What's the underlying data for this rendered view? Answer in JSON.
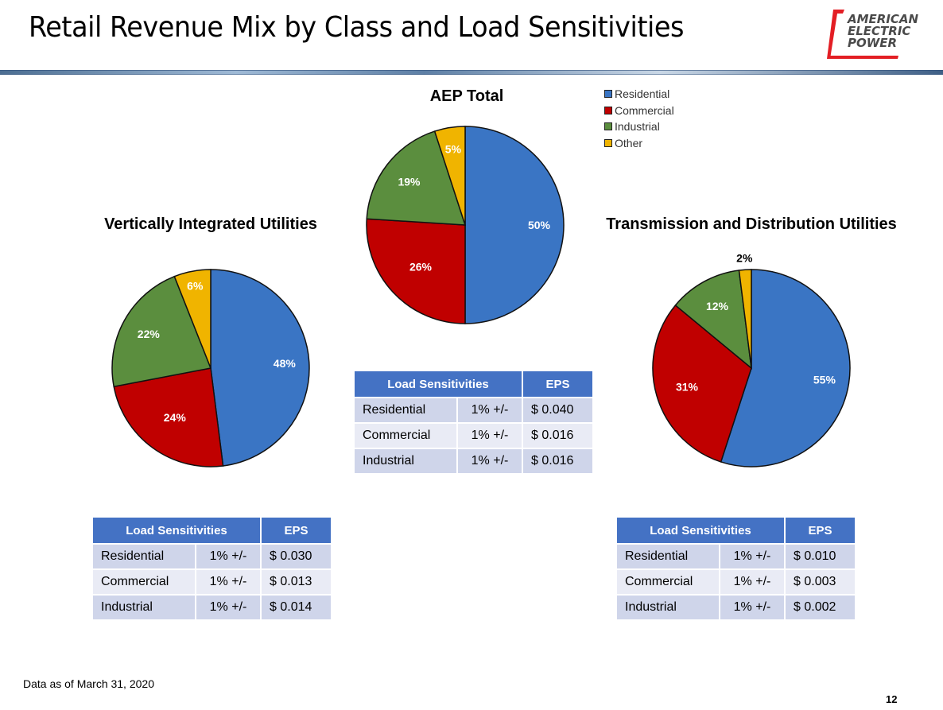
{
  "page": {
    "title": "Retail Revenue Mix by Class and Load Sensitivities",
    "footnote": "Data as of March 31, 2020",
    "page_number": "12"
  },
  "logo": {
    "lines": [
      "AMERICAN",
      "ELECTRIC",
      "POWER"
    ],
    "accent_color": "#e31e24"
  },
  "legend": {
    "items": [
      {
        "label": "Residential",
        "color": "#3a75c4"
      },
      {
        "label": "Commercial",
        "color": "#c00000"
      },
      {
        "label": "Industrial",
        "color": "#5b8e3e"
      },
      {
        "label": "Other",
        "color": "#f0b400"
      }
    ]
  },
  "chart_data": [
    {
      "type": "pie",
      "title": "AEP Total",
      "categories": [
        "Residential",
        "Commercial",
        "Industrial",
        "Other"
      ],
      "values": [
        50,
        26,
        19,
        5
      ],
      "labels": [
        "50%",
        "26%",
        "19%",
        "5%"
      ],
      "legend": "top-right"
    },
    {
      "type": "pie",
      "title": "Vertically Integrated Utilities",
      "categories": [
        "Residential",
        "Commercial",
        "Industrial",
        "Other"
      ],
      "values": [
        48,
        24,
        22,
        6
      ],
      "labels": [
        "48%",
        "24%",
        "22%",
        "6%"
      ]
    },
    {
      "type": "pie",
      "title": "Transmission and Distribution Utilities",
      "categories": [
        "Residential",
        "Commercial",
        "Industrial",
        "Other"
      ],
      "values": [
        55,
        31,
        12,
        2
      ],
      "labels": [
        "55%",
        "31%",
        "12%",
        "2%"
      ]
    }
  ],
  "tables": {
    "aep_total": {
      "header": [
        "Load Sensitivities",
        "EPS"
      ],
      "rows": [
        [
          "Residential",
          "1% +/-",
          "$ 0.040"
        ],
        [
          "Commercial",
          "1% +/-",
          "$ 0.016"
        ],
        [
          "Industrial",
          "1% +/-",
          "$ 0.016"
        ]
      ]
    },
    "vertically_integrated": {
      "header": [
        "Load Sensitivities",
        "EPS"
      ],
      "rows": [
        [
          "Residential",
          "1% +/-",
          "$ 0.030"
        ],
        [
          "Commercial",
          "1% +/-",
          "$ 0.013"
        ],
        [
          "Industrial",
          "1% +/-",
          "$ 0.014"
        ]
      ]
    },
    "transmission_distribution": {
      "header": [
        "Load Sensitivities",
        "EPS"
      ],
      "rows": [
        [
          "Residential",
          "1% +/-",
          "$ 0.010"
        ],
        [
          "Commercial",
          "1% +/-",
          "$ 0.003"
        ],
        [
          "Industrial",
          "1% +/-",
          "$ 0.002"
        ]
      ]
    }
  }
}
